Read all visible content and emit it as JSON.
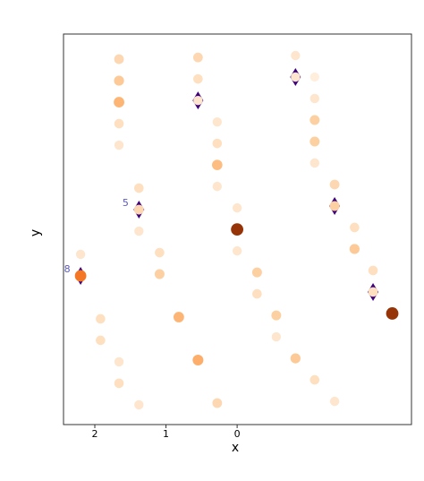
{
  "chart_data": {
    "type": "scatter",
    "xlabel": "x",
    "ylabel": "y",
    "xlim": [
      2.44,
      -2.45
    ],
    "ylim": [
      0,
      18.17
    ],
    "xticks": [
      2,
      1,
      0
    ],
    "colormap_stops": [
      "#fff5eb",
      "#fdd0a2",
      "#fdae6b",
      "#f16913",
      "#7f2704"
    ],
    "x": [
      1.66,
      1.66,
      1.66,
      1.66,
      1.66,
      1.66,
      1.66,
      1.38,
      1.38,
      1.38,
      1.38,
      2.2,
      2.2,
      1.92,
      1.92,
      1.09,
      1.09,
      0.82,
      0.55,
      0.55,
      0.55,
      0.55,
      0.28,
      0.28,
      0.28,
      0.28,
      0.28,
      0,
      0,
      0,
      -0.28,
      -0.28,
      -0.55,
      -0.55,
      -0.82,
      -0.82,
      -0.82,
      -1.09,
      -1.09,
      -1.09,
      -1.09,
      -1.09,
      -1.09,
      -1.37,
      -1.37,
      -1.37,
      -1.65,
      -1.65,
      -1.91,
      -1.91,
      -2.18
    ],
    "y": [
      17.0,
      16.0,
      15.0,
      14.0,
      13.0,
      2.92,
      1.92,
      11.0,
      10.0,
      9.0,
      0.92,
      7.92,
      6.92,
      4.92,
      3.92,
      8.0,
      7.0,
      5.0,
      17.08,
      16.08,
      15.08,
      3.0,
      14.08,
      13.08,
      12.08,
      11.08,
      1.0,
      10.08,
      9.08,
      8.08,
      7.08,
      6.08,
      5.08,
      4.08,
      17.17,
      16.17,
      3.08,
      16.17,
      15.17,
      14.17,
      13.17,
      12.17,
      2.08,
      11.17,
      10.17,
      1.08,
      9.17,
      8.17,
      7.17,
      6.17,
      5.17
    ],
    "values": [
      0.2,
      0.3,
      0.45,
      0.15,
      0.1,
      0.1,
      0.15,
      0.15,
      0.2,
      0.1,
      0.1,
      0.1,
      0.7,
      0.15,
      0.15,
      0.15,
      0.25,
      0.45,
      0.2,
      0.15,
      0.1,
      0.5,
      0.1,
      0.15,
      0.4,
      0.1,
      0.2,
      0.1,
      0.95,
      0.1,
      0.25,
      0.15,
      0.25,
      0.1,
      0.1,
      0.1,
      0.3,
      0.05,
      0.1,
      0.25,
      0.25,
      0.1,
      0.15,
      0.2,
      0.25,
      0.1,
      0.15,
      0.3,
      0.15,
      0.15,
      0.95
    ],
    "highlight": {
      "color": "#3f007d",
      "x": [
        2.2,
        1.38,
        0.55,
        -0.82,
        -1.37,
        -1.91
      ],
      "y": [
        6.92,
        10.0,
        15.08,
        16.17,
        10.17,
        6.17
      ]
    },
    "annotations": [
      {
        "text": "5",
        "x": 1.38,
        "y": 10.0
      },
      {
        "text": "8",
        "x": 2.2,
        "y": 6.92
      }
    ]
  }
}
